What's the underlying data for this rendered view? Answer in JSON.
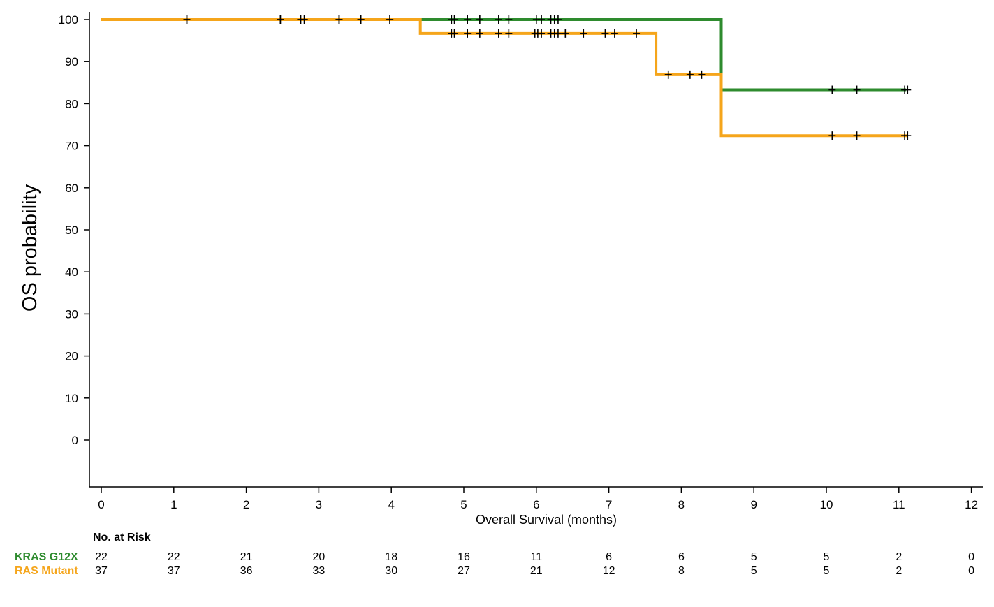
{
  "chart_data": {
    "type": "line",
    "step": true,
    "ylabel": "OS probability",
    "xlabel": "Overall Survival  (months)",
    "xlim": [
      0,
      12
    ],
    "ylim": [
      -11,
      100
    ],
    "x_ticks": [
      0,
      1,
      2,
      3,
      4,
      5,
      6,
      7,
      8,
      9,
      10,
      11,
      12
    ],
    "y_ticks": [
      0,
      10,
      20,
      30,
      40,
      50,
      60,
      70,
      80,
      90,
      100
    ],
    "grid": false,
    "series": [
      {
        "name": "KRAS  G12X",
        "color": "#2e8b2e",
        "steps": [
          [
            0,
            100
          ],
          [
            8.55,
            100
          ],
          [
            8.55,
            83.3
          ],
          [
            11.1,
            83.3
          ]
        ],
        "censored": [
          [
            1.18,
            100
          ],
          [
            2.47,
            100
          ],
          [
            2.75,
            100
          ],
          [
            2.8,
            100
          ],
          [
            3.28,
            100
          ],
          [
            3.58,
            100
          ],
          [
            3.98,
            100
          ],
          [
            4.83,
            100
          ],
          [
            4.87,
            100
          ],
          [
            5.05,
            100
          ],
          [
            5.22,
            100
          ],
          [
            5.48,
            100
          ],
          [
            5.62,
            100
          ],
          [
            6.0,
            100
          ],
          [
            6.07,
            100
          ],
          [
            6.2,
            100
          ],
          [
            6.25,
            100
          ],
          [
            6.3,
            100
          ],
          [
            10.08,
            83.3
          ],
          [
            10.42,
            83.3
          ],
          [
            11.08,
            83.3
          ],
          [
            11.12,
            83.3
          ]
        ]
      },
      {
        "name": "RAS  Mutant",
        "color": "#f5a51b",
        "steps": [
          [
            0,
            100
          ],
          [
            4.4,
            100
          ],
          [
            4.4,
            96.7
          ],
          [
            7.65,
            96.7
          ],
          [
            7.65,
            86.9
          ],
          [
            8.55,
            86.9
          ],
          [
            8.55,
            72.4
          ],
          [
            11.12,
            72.4
          ]
        ],
        "censored": [
          [
            1.18,
            100
          ],
          [
            2.47,
            100
          ],
          [
            2.75,
            100
          ],
          [
            2.8,
            100
          ],
          [
            3.28,
            100
          ],
          [
            3.58,
            100
          ],
          [
            3.98,
            100
          ],
          [
            4.83,
            96.7
          ],
          [
            4.87,
            96.7
          ],
          [
            5.05,
            96.7
          ],
          [
            5.22,
            96.7
          ],
          [
            5.48,
            96.7
          ],
          [
            5.62,
            96.7
          ],
          [
            5.98,
            96.7
          ],
          [
            6.02,
            96.7
          ],
          [
            6.07,
            96.7
          ],
          [
            6.2,
            96.7
          ],
          [
            6.25,
            96.7
          ],
          [
            6.3,
            96.7
          ],
          [
            6.4,
            96.7
          ],
          [
            6.65,
            96.7
          ],
          [
            6.95,
            96.7
          ],
          [
            7.08,
            96.7
          ],
          [
            7.38,
            96.7
          ],
          [
            7.82,
            86.9
          ],
          [
            8.12,
            86.9
          ],
          [
            8.28,
            86.9
          ],
          [
            10.08,
            72.4
          ],
          [
            10.42,
            72.4
          ],
          [
            11.08,
            72.4
          ],
          [
            11.12,
            72.4
          ]
        ]
      }
    ],
    "risk_table": {
      "title": "No. at Risk",
      "rows": [
        {
          "label": "KRAS  G12X",
          "color": "#2e8b2e",
          "values": [
            22,
            22,
            21,
            20,
            18,
            16,
            11,
            6,
            6,
            5,
            5,
            2,
            0
          ]
        },
        {
          "label": "RAS  Mutant",
          "color": "#f5a51b",
          "values": [
            37,
            37,
            36,
            33,
            30,
            27,
            21,
            12,
            8,
            5,
            5,
            2,
            0
          ]
        }
      ]
    }
  }
}
